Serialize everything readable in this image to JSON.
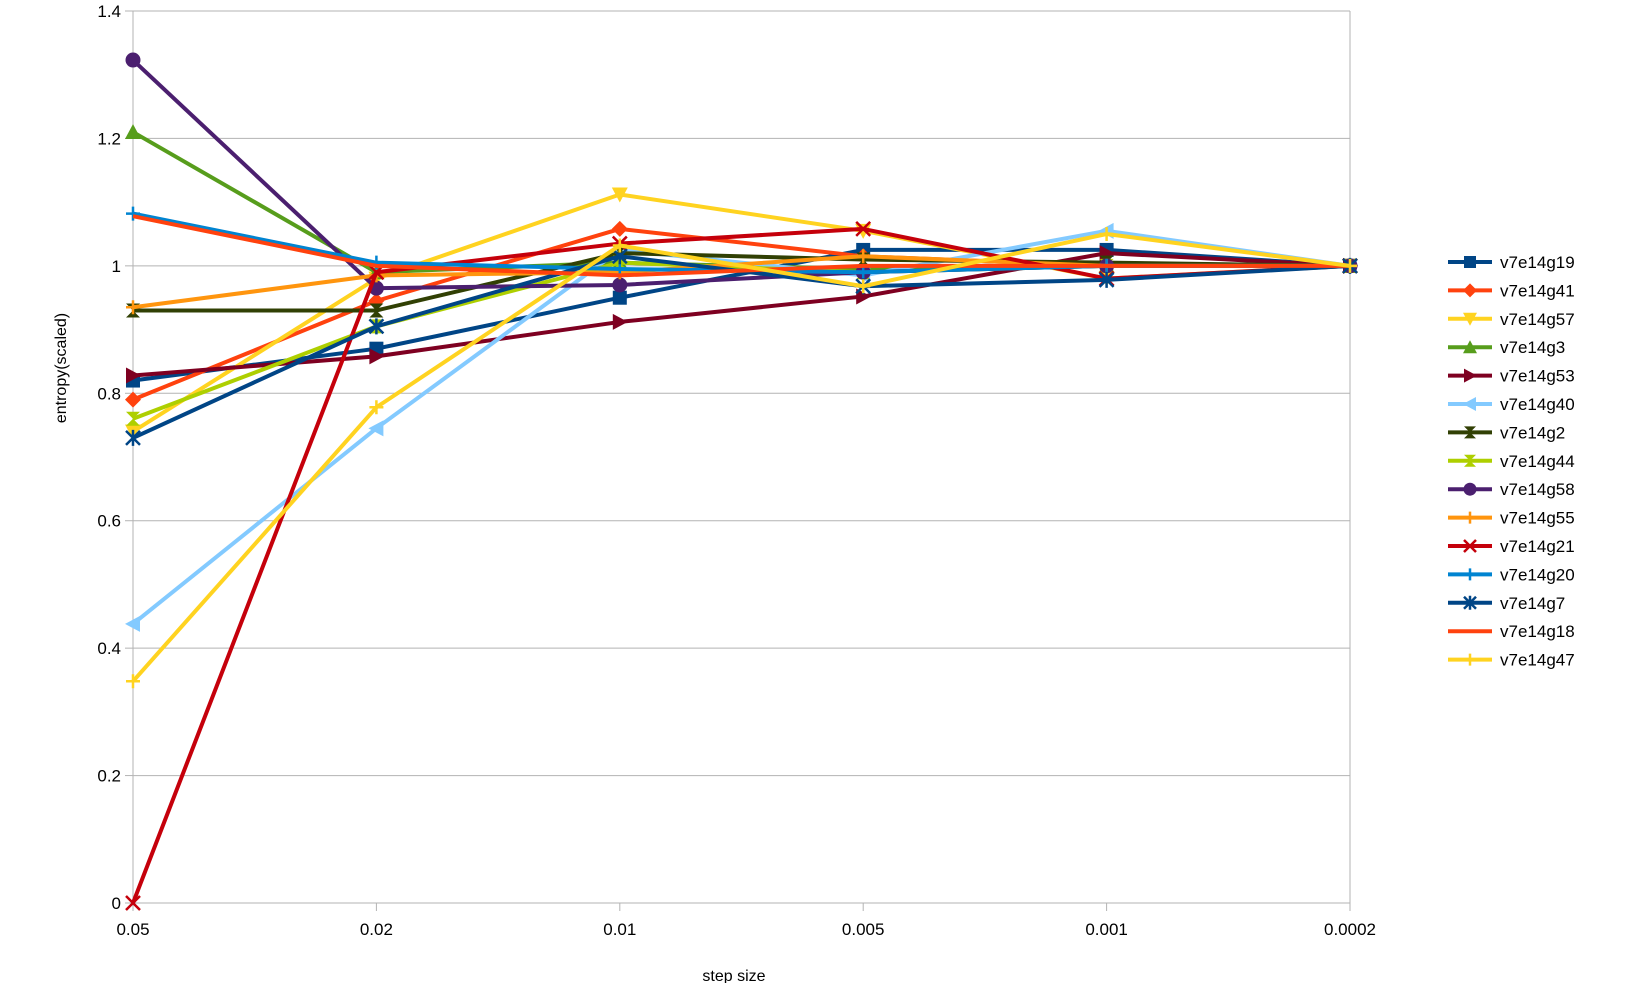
{
  "chart_data": {
    "type": "line",
    "title": "",
    "xlabel": "step size",
    "ylabel": "entropy(scaled)",
    "categories": [
      "0.05",
      "0.02",
      "0.01",
      "0.005",
      "0.001",
      "0.0002"
    ],
    "ylim": [
      0,
      1.4
    ],
    "yticks": [
      "0",
      "0.2",
      "0.4",
      "0.6",
      "0.8",
      "1",
      "1.2",
      "1.4"
    ],
    "grid": true,
    "legend_position": "right",
    "series": [
      {
        "name": "v7e14g19",
        "color": "#004586",
        "marker": "square",
        "values": [
          0.82,
          0.87,
          0.95,
          1.025,
          1.025,
          1.0
        ]
      },
      {
        "name": "v7e14g41",
        "color": "#ff420e",
        "marker": "diamond",
        "values": [
          0.79,
          0.945,
          1.058,
          1.015,
          1.0,
          1.0
        ]
      },
      {
        "name": "v7e14g57",
        "color": "#ffd320",
        "marker": "triangle-down",
        "values": [
          0.74,
          0.98,
          1.112,
          1.055,
          0.98,
          1.0
        ]
      },
      {
        "name": "v7e14g3",
        "color": "#579d1c",
        "marker": "triangle-up",
        "values": [
          1.21,
          0.99,
          1.005,
          0.995,
          1.0,
          1.0
        ]
      },
      {
        "name": "v7e14g53",
        "color": "#7e0021",
        "marker": "triangle-right",
        "values": [
          0.828,
          0.858,
          0.912,
          0.952,
          1.02,
          1.0
        ]
      },
      {
        "name": "v7e14g40",
        "color": "#83caff",
        "marker": "triangle-left",
        "values": [
          0.438,
          0.745,
          1.025,
          0.985,
          1.055,
          1.0
        ]
      },
      {
        "name": "v7e14g2",
        "color": "#314004",
        "marker": "bowtie",
        "values": [
          0.93,
          0.93,
          1.02,
          1.01,
          1.005,
          1.0
        ]
      },
      {
        "name": "v7e14g44",
        "color": "#aecf00",
        "marker": "hourglass",
        "values": [
          0.76,
          0.905,
          1.005,
          0.99,
          1.0,
          1.0
        ]
      },
      {
        "name": "v7e14g58",
        "color": "#4b1f6f",
        "marker": "circle",
        "values": [
          1.323,
          0.965,
          0.97,
          0.99,
          1.0,
          1.0
        ]
      },
      {
        "name": "v7e14g55",
        "color": "#ff950e",
        "marker": "plus",
        "values": [
          0.935,
          0.985,
          0.99,
          1.015,
          1.0,
          1.0
        ]
      },
      {
        "name": "v7e14g21",
        "color": "#c5000b",
        "marker": "x",
        "values": [
          0.0,
          0.99,
          1.035,
          1.058,
          0.98,
          1.0
        ]
      },
      {
        "name": "v7e14g20",
        "color": "#0084d1",
        "marker": "plus",
        "values": [
          1.082,
          1.005,
          0.995,
          0.99,
          1.0,
          1.0
        ]
      },
      {
        "name": "v7e14g7",
        "color": "#004586",
        "marker": "asterisk",
        "values": [
          0.73,
          0.905,
          1.015,
          0.968,
          0.978,
          1.0
        ]
      },
      {
        "name": "v7e14g18",
        "color": "#ff420e",
        "marker": "none",
        "values": [
          1.078,
          1.0,
          0.985,
          1.0,
          1.0,
          1.0
        ]
      },
      {
        "name": "v7e14g47",
        "color": "#ffd320",
        "marker": "plus",
        "values": [
          0.348,
          0.778,
          1.032,
          0.968,
          1.05,
          1.0
        ]
      }
    ]
  }
}
